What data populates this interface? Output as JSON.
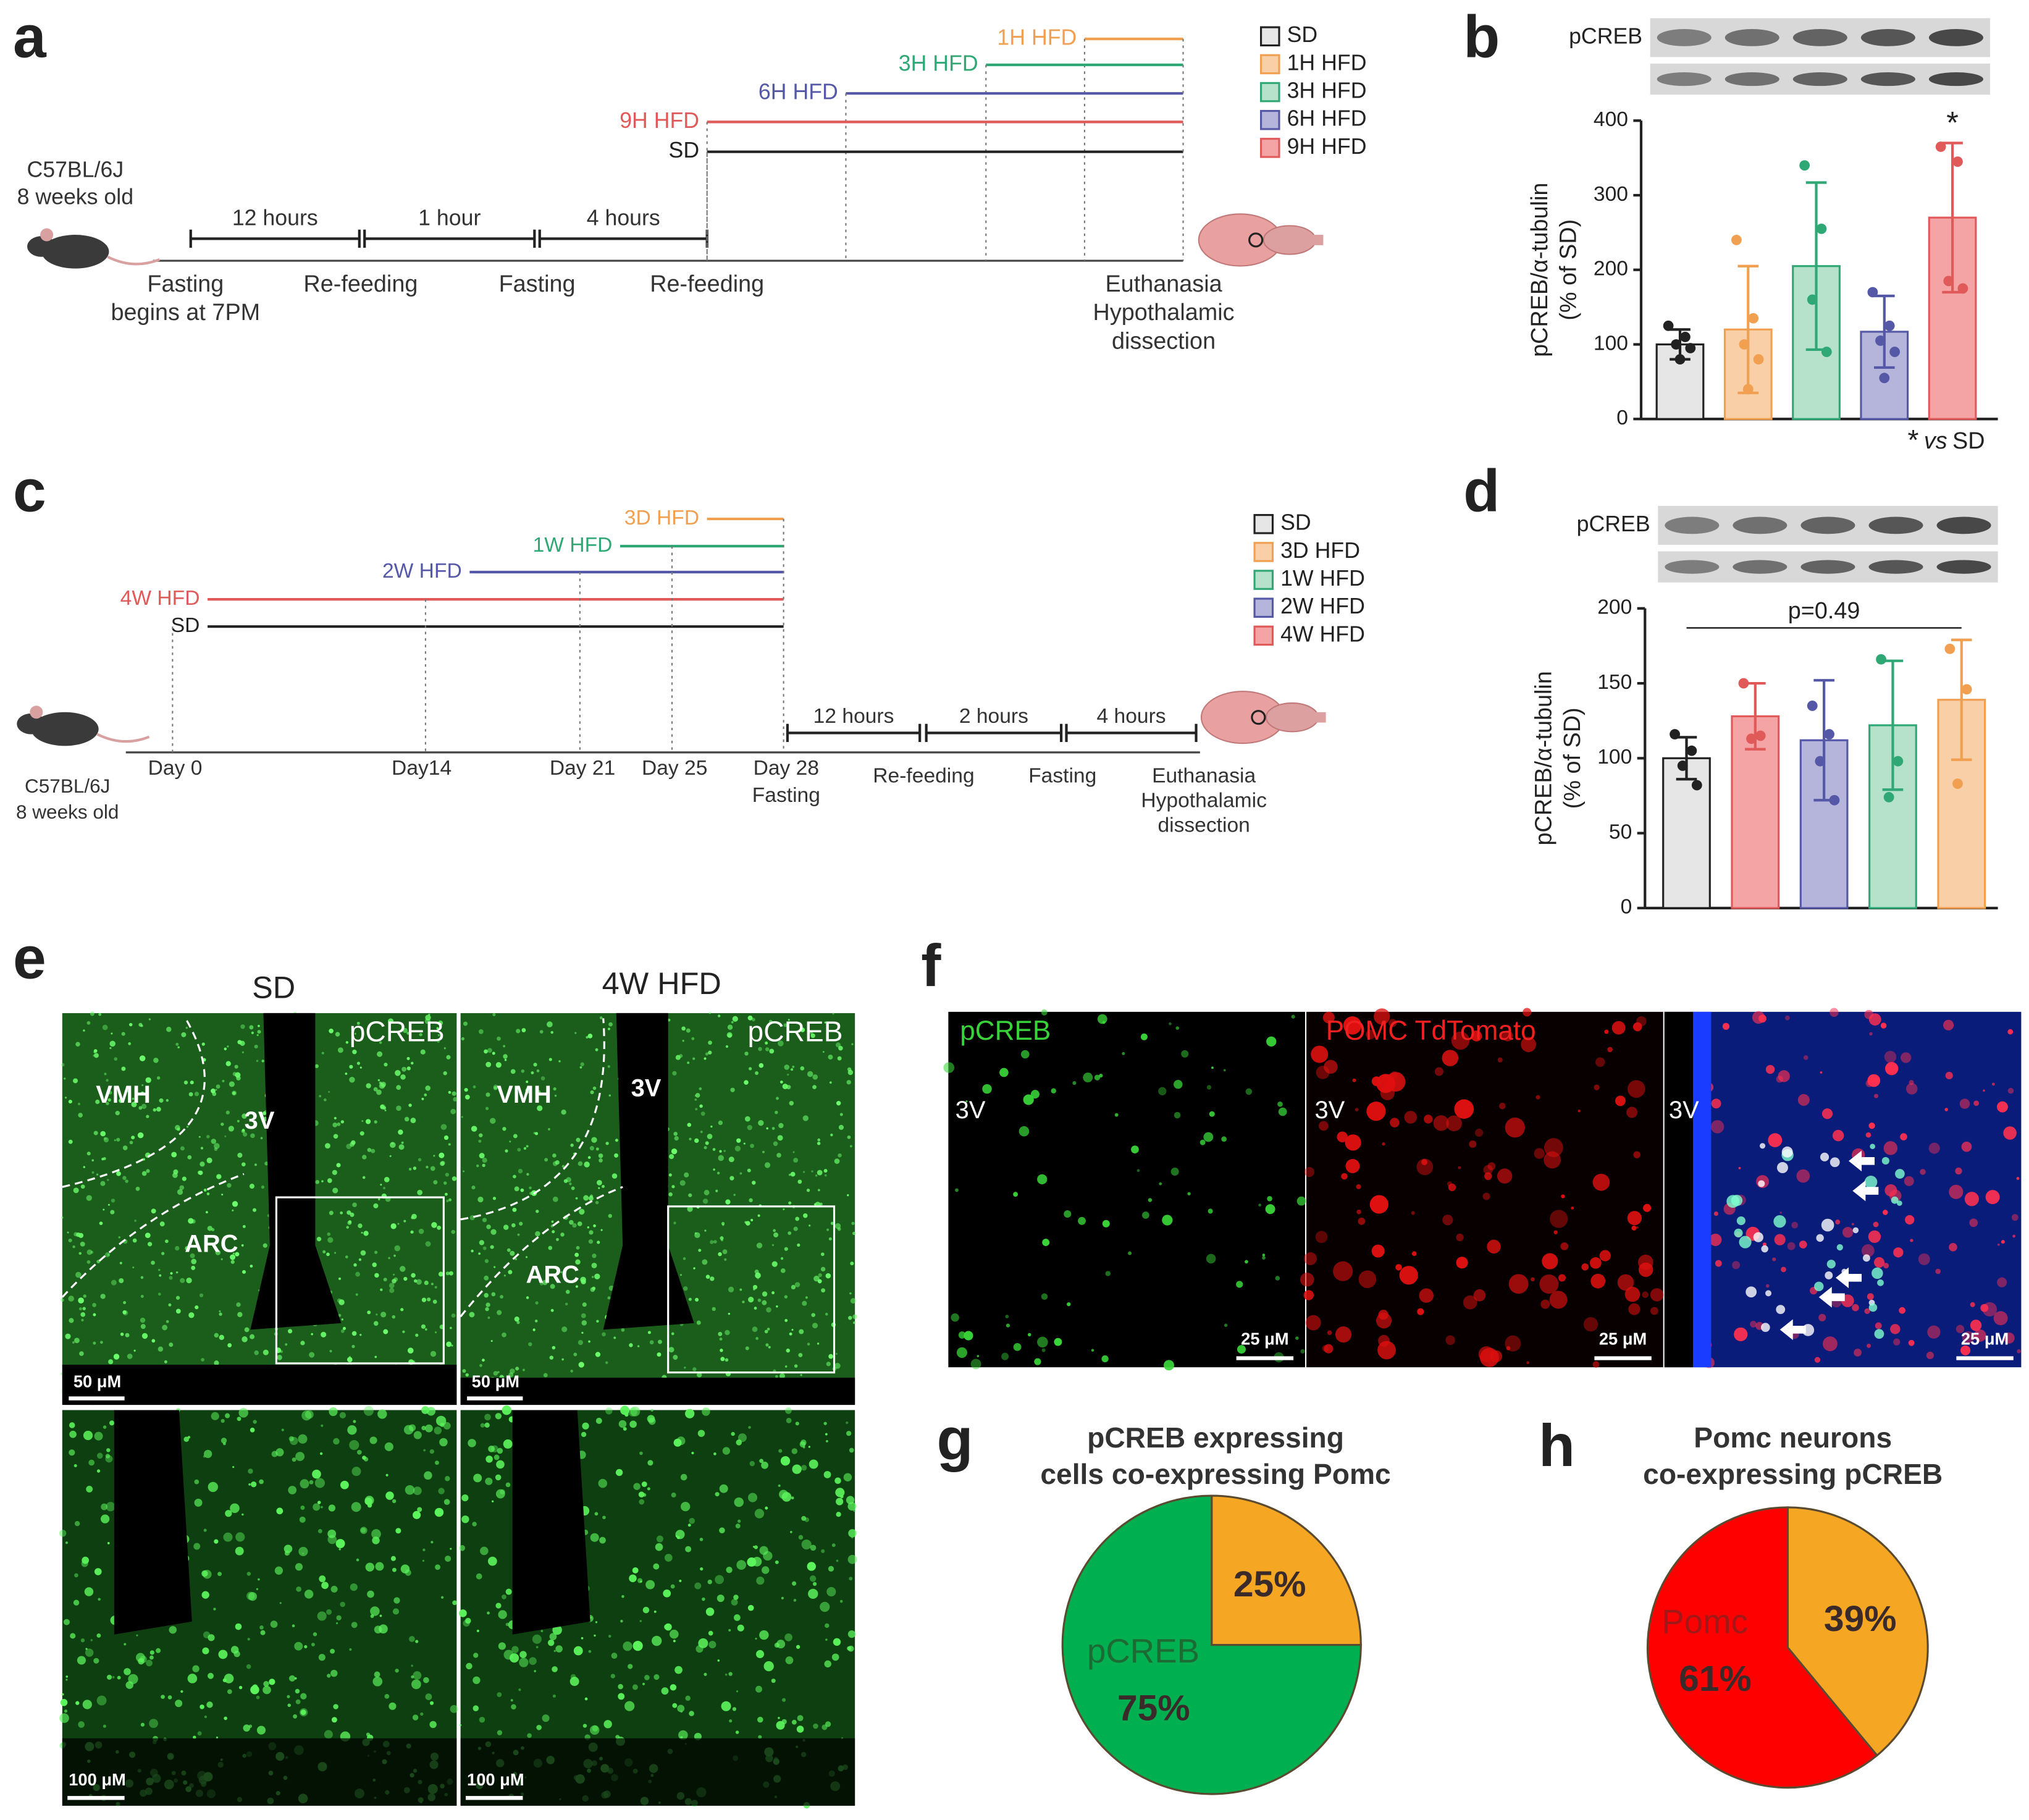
{
  "panel_a": {
    "letter": "a",
    "mouse": [
      "C57BL/6J",
      "8 weeks old"
    ],
    "intervals": [
      "12 hours",
      "1 hour",
      "4 hours"
    ],
    "steps": [
      [
        "Fasting",
        "begins at 7PM"
      ],
      [
        "Re-feeding"
      ],
      [
        "Fasting"
      ],
      [
        "Re-feeding"
      ],
      [
        "Euthanasia",
        "Hypothalamic",
        "dissection"
      ]
    ],
    "groups": [
      {
        "name": "1H HFD",
        "color": "#f0a050"
      },
      {
        "name": "3H HFD",
        "color": "#2fa876"
      },
      {
        "name": "6H HFD",
        "color": "#5558a6"
      },
      {
        "name": "9H HFD",
        "color": "#e05a5a"
      },
      {
        "name": "SD",
        "color": "#222222"
      }
    ]
  },
  "panel_c": {
    "letter": "c",
    "mouse": [
      "C57BL/6J",
      "8 weeks old"
    ],
    "days": [
      [
        "Day 0"
      ],
      [
        "Day14"
      ],
      [
        "Day 21"
      ],
      [
        "Day 25"
      ],
      [
        "Day 28",
        "Fasting"
      ]
    ],
    "intervals": [
      "12 hours",
      "2 hours",
      "4 hours"
    ],
    "steps": [
      [
        "Re-feeding"
      ],
      [
        "Fasting"
      ],
      [
        "Euthanasia",
        "Hypothalamic",
        "dissection"
      ]
    ],
    "groups": [
      {
        "name": "3D HFD",
        "color": "#f0a050"
      },
      {
        "name": "1W HFD",
        "color": "#2fa876"
      },
      {
        "name": "2W HFD",
        "color": "#5558a6"
      },
      {
        "name": "4W HFD",
        "color": "#e05a5a"
      },
      {
        "name": "SD",
        "color": "#222222"
      }
    ]
  },
  "panel_e": {
    "letter": "e",
    "columns": [
      "SD",
      "4W HFD"
    ],
    "stain": [
      "pCREB",
      "pCREB"
    ],
    "regions": [
      [
        "VMH",
        "3V",
        "ARC"
      ],
      [
        "VMH",
        "3V",
        "ARC"
      ]
    ],
    "scale_bars": [
      [
        "50 μM",
        "100 μM"
      ],
      [
        "50 μM",
        "100 μM"
      ]
    ]
  },
  "panel_f": {
    "letter": "f",
    "channels": [
      "pCREB",
      "POMC TdTomato"
    ],
    "region": [
      "3V",
      "3V",
      "3V"
    ],
    "scale_bars": [
      "25 μM",
      "25 μM",
      "25 μM"
    ]
  },
  "chart_data": [
    {
      "panel": "b",
      "type": "bar",
      "blot_label": "pCREB",
      "ylabel": [
        "pCREB/α-tubulin",
        "(% of SD)"
      ],
      "ylim": [
        0,
        400
      ],
      "yticks": [
        0,
        100,
        200,
        300,
        400
      ],
      "legend": "left",
      "series": [
        {
          "name": "SD",
          "color": "#222222",
          "fill": "#e6e6e6",
          "values": [
            100
          ],
          "errors": [
            20
          ],
          "points": [
            125,
            110,
            100,
            95,
            80
          ]
        },
        {
          "name": "1H HFD",
          "color": "#f0a050",
          "fill": "#f9cfa8",
          "values": [
            120
          ],
          "errors": [
            85
          ],
          "points": [
            240,
            135,
            100,
            80,
            40
          ]
        },
        {
          "name": "3H HFD",
          "color": "#2fa876",
          "fill": "#b6e2cc",
          "values": [
            205
          ],
          "errors": [
            112
          ],
          "points": [
            340,
            255,
            160,
            90
          ]
        },
        {
          "name": "6H HFD",
          "color": "#5558a6",
          "fill": "#b5b5dc",
          "values": [
            117
          ],
          "errors": [
            48
          ],
          "points": [
            170,
            125,
            105,
            90,
            55
          ]
        },
        {
          "name": "9H HFD",
          "color": "#e05a5a",
          "fill": "#f4a4a4",
          "values": [
            270
          ],
          "errors": [
            100
          ],
          "points": [
            365,
            345,
            185,
            175
          ],
          "annotation": "*"
        }
      ],
      "footnote": [
        "*",
        "vs",
        "SD"
      ]
    },
    {
      "panel": "d",
      "type": "bar",
      "blot_label": "pCREB",
      "ylabel": [
        "pCREB/α-tubulin",
        "(% of SD)"
      ],
      "ylim": [
        0,
        200
      ],
      "yticks": [
        0,
        50,
        100,
        150,
        200
      ],
      "legend": "left",
      "legend_entries": [
        {
          "name": "SD",
          "color": "#222222",
          "fill": "#e6e6e6"
        },
        {
          "name": "3D HFD",
          "color": "#f0a050",
          "fill": "#f9cfa8"
        },
        {
          "name": "1W HFD",
          "color": "#2fa876",
          "fill": "#b6e2cc"
        },
        {
          "name": "2W HFD",
          "color": "#5558a6",
          "fill": "#b5b5dc"
        },
        {
          "name": "4W HFD",
          "color": "#e05a5a",
          "fill": "#f4a4a4"
        }
      ],
      "series": [
        {
          "color": "#222222",
          "fill": "#e6e6e6",
          "values": [
            100
          ],
          "errors": [
            14
          ],
          "points": [
            116,
            105,
            95,
            82
          ]
        },
        {
          "color": "#e05a5a",
          "fill": "#f4a4a4",
          "values": [
            128
          ],
          "errors": [
            22
          ],
          "points": [
            150,
            115,
            113
          ]
        },
        {
          "color": "#5558a6",
          "fill": "#b5b5dc",
          "values": [
            112
          ],
          "errors": [
            40
          ],
          "points": [
            135,
            116,
            98,
            72
          ]
        },
        {
          "color": "#2fa876",
          "fill": "#b6e2cc",
          "values": [
            122
          ],
          "errors": [
            43
          ],
          "points": [
            166,
            98,
            74
          ]
        },
        {
          "color": "#f0a050",
          "fill": "#f9cfa8",
          "values": [
            139
          ],
          "errors": [
            40
          ],
          "points": [
            173,
            146,
            83
          ]
        }
      ],
      "bracket_label": "p=0.49"
    },
    {
      "panel": "g",
      "type": "pie",
      "title": [
        "pCREB expressing",
        "cells co-expressing Pomc"
      ],
      "categories": [
        null,
        "pCREB"
      ],
      "values": [
        25,
        75
      ],
      "value_labels": [
        "25%",
        "75%"
      ],
      "colors": [
        "#f5a623",
        "#00b050"
      ]
    },
    {
      "panel": "h",
      "type": "pie",
      "title": [
        "Pomc neurons",
        "co-expressing pCREB"
      ],
      "categories": [
        null,
        "Pomc"
      ],
      "values": [
        39,
        61
      ],
      "value_labels": [
        "39%",
        "61%"
      ],
      "colors": [
        "#f5a623",
        "#ff0000"
      ]
    }
  ]
}
